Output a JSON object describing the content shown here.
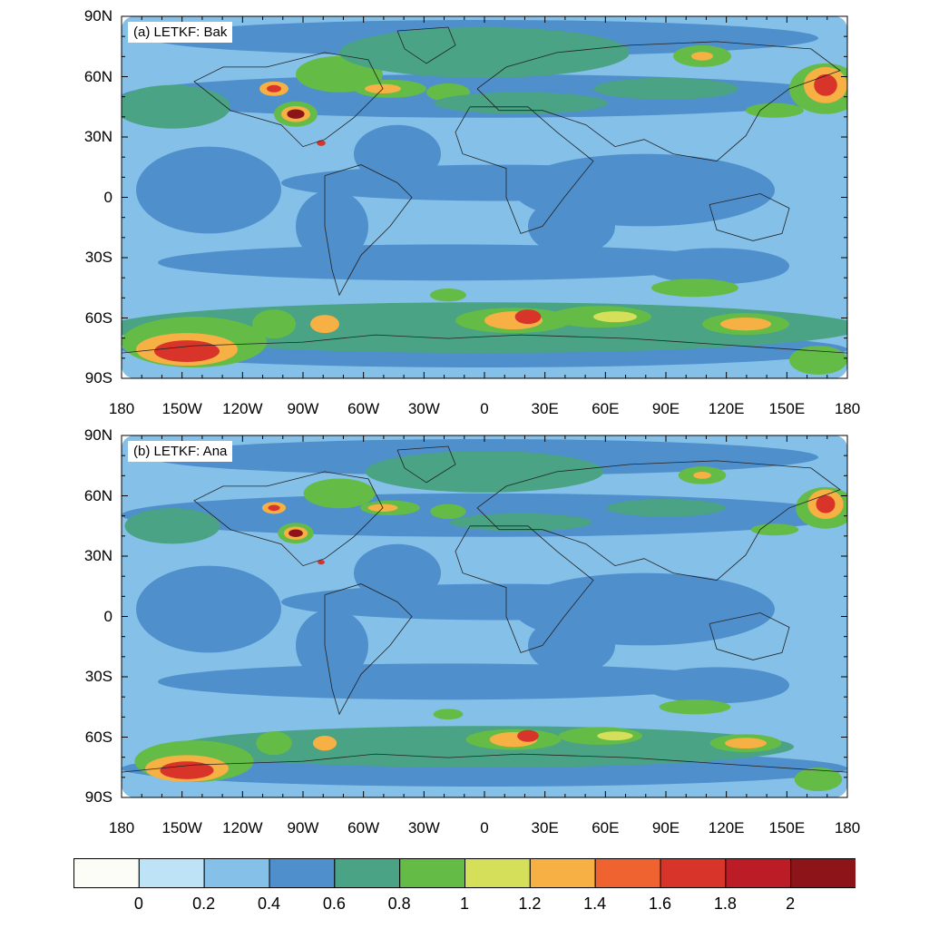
{
  "panels": [
    {
      "id": "a",
      "title": "(a) LETKF: Bak"
    },
    {
      "id": "b",
      "title": "(b) LETKF: Ana"
    }
  ],
  "lat_ticks": [
    "90N",
    "60N",
    "30N",
    "0",
    "30S",
    "60S",
    "90S"
  ],
  "lon_ticks": [
    "180",
    "150W",
    "120W",
    "90W",
    "60W",
    "30W",
    "0",
    "30E",
    "60E",
    "90E",
    "120E",
    "150E",
    "180"
  ],
  "colorbar": {
    "levels": [
      "0",
      "0.2",
      "0.4",
      "0.6",
      "0.8",
      "1",
      "1.2",
      "1.4",
      "1.6",
      "1.8",
      "2"
    ],
    "colors": [
      "#fdfdf8",
      "#bee3f6",
      "#84c0e8",
      "#4f8fcc",
      "#49a384",
      "#64bc47",
      "#d5df5a",
      "#f6b043",
      "#ef6331",
      "#d9342a",
      "#bb1c25",
      "#8d151a"
    ]
  },
  "palette": {
    "ocean_low": "#84c0e8",
    "mid": "#4f8fcc",
    "green_dark": "#49a384",
    "green": "#64bc47",
    "yellow": "#d5df5a",
    "orange": "#f6b043",
    "red_orange": "#ef6331",
    "red": "#d9342a",
    "dark_red": "#8d151a",
    "coast": "#222222"
  }
}
